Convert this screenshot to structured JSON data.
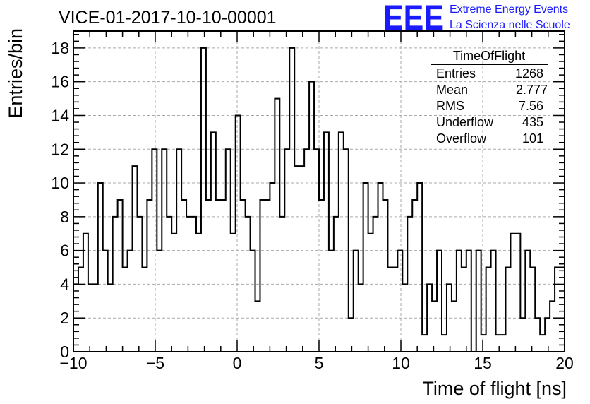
{
  "header": {
    "run_title": "VICE-01-2017-10-10-00001",
    "logo_mark": "EEE",
    "logo_line1": "Extreme Energy Events",
    "logo_line2": "La Scienza nelle Scuole"
  },
  "stats": {
    "name": "TimeOfFlight",
    "rows": [
      {
        "label": "Entries",
        "value": "1268"
      },
      {
        "label": "Mean",
        "value": "2.777"
      },
      {
        "label": "RMS",
        "value": "7.56"
      },
      {
        "label": "Underflow",
        "value": "435"
      },
      {
        "label": "Overflow",
        "value": "101"
      }
    ]
  },
  "chart_data": {
    "type": "bar",
    "histogram": true,
    "title": "",
    "xlabel": "Time of flight [ns]",
    "ylabel": "Entries/bin",
    "xlim": [
      -10,
      20
    ],
    "ylim": [
      0,
      19
    ],
    "bin_width": 0.3,
    "x_ticks": [
      "−10",
      "−5",
      "0",
      "5",
      "10",
      "15",
      "20"
    ],
    "y_ticks": [
      "0",
      "2",
      "4",
      "6",
      "8",
      "10",
      "12",
      "14",
      "16",
      "18"
    ],
    "grid": true,
    "line_color": "#000000",
    "values": [
      4,
      5,
      7,
      4,
      4,
      10,
      6,
      4,
      8,
      9,
      5,
      6,
      11,
      8,
      5,
      9,
      12,
      6,
      12,
      8,
      7,
      12,
      9,
      8,
      8,
      7,
      18,
      9,
      13,
      9,
      9,
      12,
      7,
      14,
      9,
      8,
      6,
      3,
      9,
      9,
      10,
      15,
      8,
      12,
      18,
      11,
      11,
      12,
      16,
      12,
      9,
      13,
      6,
      8,
      13,
      12,
      2,
      6,
      4,
      10,
      7,
      8,
      10,
      9,
      5,
      5,
      6,
      4,
      8,
      9,
      10,
      1,
      4,
      3,
      6,
      1,
      4,
      3,
      6,
      5,
      6,
      0,
      6,
      1,
      5,
      6,
      1,
      1,
      5,
      7,
      7,
      2,
      6,
      5,
      2,
      1,
      2,
      3,
      5,
      5
    ]
  }
}
